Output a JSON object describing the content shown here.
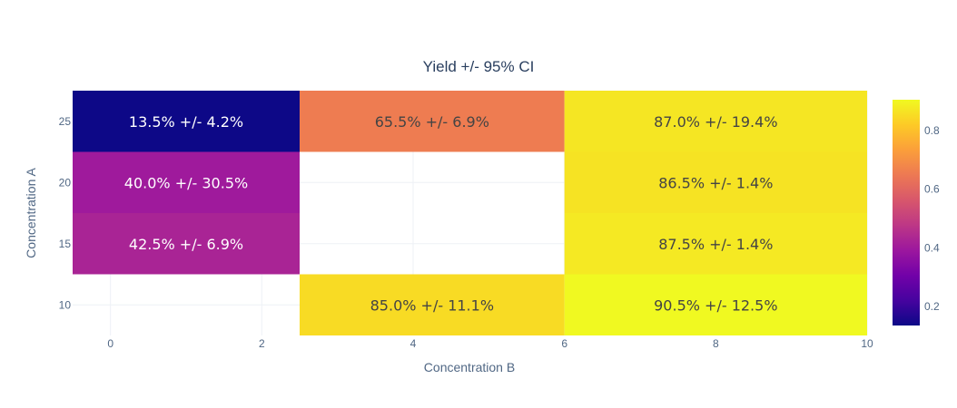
{
  "chart_data": {
    "type": "heatmap",
    "title": "Yield +/- 95% CI",
    "xlabel": "Concentration B",
    "ylabel": "Concentration A",
    "x_edges": [
      -0.5,
      2.5,
      6,
      10
    ],
    "y_centers": [
      10,
      15,
      20,
      25
    ],
    "x_ticks": [
      0,
      2,
      4,
      6,
      8,
      10
    ],
    "y_ticks": [
      10,
      15,
      20,
      25
    ],
    "xlim": [
      -0.5,
      10
    ],
    "grid": true,
    "colorscale": "plasma",
    "zmin": 0.135,
    "zmax": 0.905,
    "colorbar_ticks": [
      0.2,
      0.4,
      0.6,
      0.8
    ],
    "cells": [
      {
        "col": 0,
        "y": 25,
        "value": 0.135,
        "label": "13.5% +/- 4.2%"
      },
      {
        "col": 1,
        "y": 25,
        "value": 0.655,
        "label": "65.5% +/- 6.9%"
      },
      {
        "col": 2,
        "y": 25,
        "value": 0.87,
        "label": "87.0% +/- 19.4%"
      },
      {
        "col": 0,
        "y": 20,
        "value": 0.4,
        "label": "40.0% +/- 30.5%"
      },
      {
        "col": 2,
        "y": 20,
        "value": 0.865,
        "label": "86.5% +/- 1.4%"
      },
      {
        "col": 0,
        "y": 15,
        "value": 0.425,
        "label": "42.5% +/- 6.9%"
      },
      {
        "col": 2,
        "y": 15,
        "value": 0.875,
        "label": "87.5% +/- 1.4%"
      },
      {
        "col": 1,
        "y": 10,
        "value": 0.85,
        "label": "85.0% +/- 11.1%"
      },
      {
        "col": 2,
        "y": 10,
        "value": 0.905,
        "label": "90.5% +/- 12.5%"
      }
    ]
  }
}
